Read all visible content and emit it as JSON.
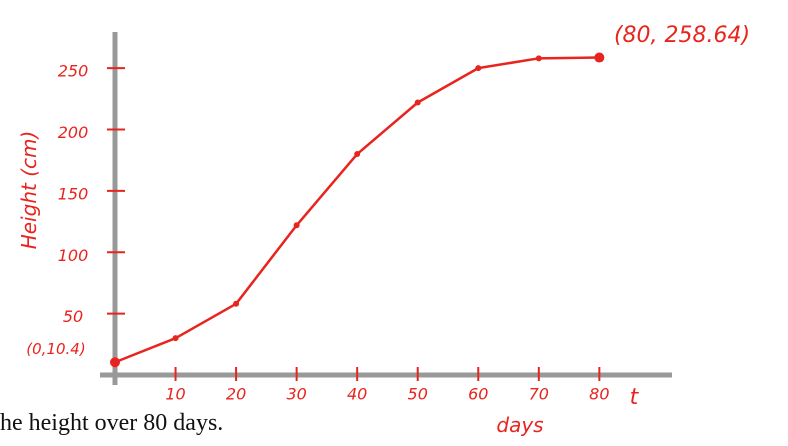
{
  "chart_data": {
    "type": "line",
    "x": [
      0,
      10,
      20,
      30,
      40,
      50,
      60,
      70,
      80
    ],
    "series": [
      {
        "color": "#e8241e",
        "values": [
          10.4,
          30,
          58,
          122,
          180,
          222,
          250,
          258,
          258.64
        ]
      }
    ],
    "xlim": [
      0,
      92
    ],
    "ylim": [
      0,
      277
    ],
    "xticks": [
      10,
      20,
      30,
      40,
      50,
      60,
      70,
      80
    ],
    "yticks": [
      50,
      100,
      150,
      200,
      250
    ],
    "grid": false,
    "y_label": "Height (cm)",
    "x_label": "days",
    "x_variable": "t",
    "annotations": [
      "(80, 258.64)",
      "(0,10.4)"
    ],
    "caption": "he height over 80 days."
  }
}
